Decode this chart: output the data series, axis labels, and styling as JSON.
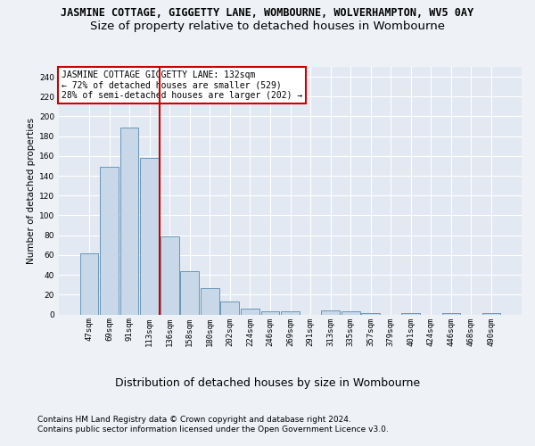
{
  "title1": "JASMINE COTTAGE, GIGGETTY LANE, WOMBOURNE, WOLVERHAMPTON, WV5 0AY",
  "title2": "Size of property relative to detached houses in Wombourne",
  "xlabel": "Distribution of detached houses by size in Wombourne",
  "ylabel": "Number of detached properties",
  "footnote1": "Contains HM Land Registry data © Crown copyright and database right 2024.",
  "footnote2": "Contains public sector information licensed under the Open Government Licence v3.0.",
  "categories": [
    "47sqm",
    "69sqm",
    "91sqm",
    "113sqm",
    "136sqm",
    "158sqm",
    "180sqm",
    "202sqm",
    "224sqm",
    "246sqm",
    "269sqm",
    "291sqm",
    "313sqm",
    "335sqm",
    "357sqm",
    "379sqm",
    "401sqm",
    "424sqm",
    "446sqm",
    "468sqm",
    "490sqm"
  ],
  "values": [
    62,
    149,
    189,
    158,
    79,
    44,
    27,
    13,
    6,
    3,
    3,
    0,
    4,
    3,
    1,
    0,
    1,
    0,
    1,
    0,
    1
  ],
  "bar_color": "#c8d8e8",
  "bar_edge_color": "#5a8ab0",
  "vline_color": "#cc0000",
  "annotation_text": "JASMINE COTTAGE GIGGETTY LANE: 132sqm\n← 72% of detached houses are smaller (529)\n28% of semi-detached houses are larger (202) →",
  "annotation_box_color": "white",
  "annotation_box_edge": "#cc0000",
  "ylim": [
    0,
    250
  ],
  "bg_color": "#eef2f7",
  "plot_bg_color": "#e2e9f2",
  "grid_color": "white",
  "title1_fontsize": 8.5,
  "title2_fontsize": 9.5,
  "xlabel_fontsize": 9,
  "ylabel_fontsize": 7.5,
  "tick_fontsize": 6.5,
  "annotation_fontsize": 7,
  "footnote_fontsize": 6.5
}
